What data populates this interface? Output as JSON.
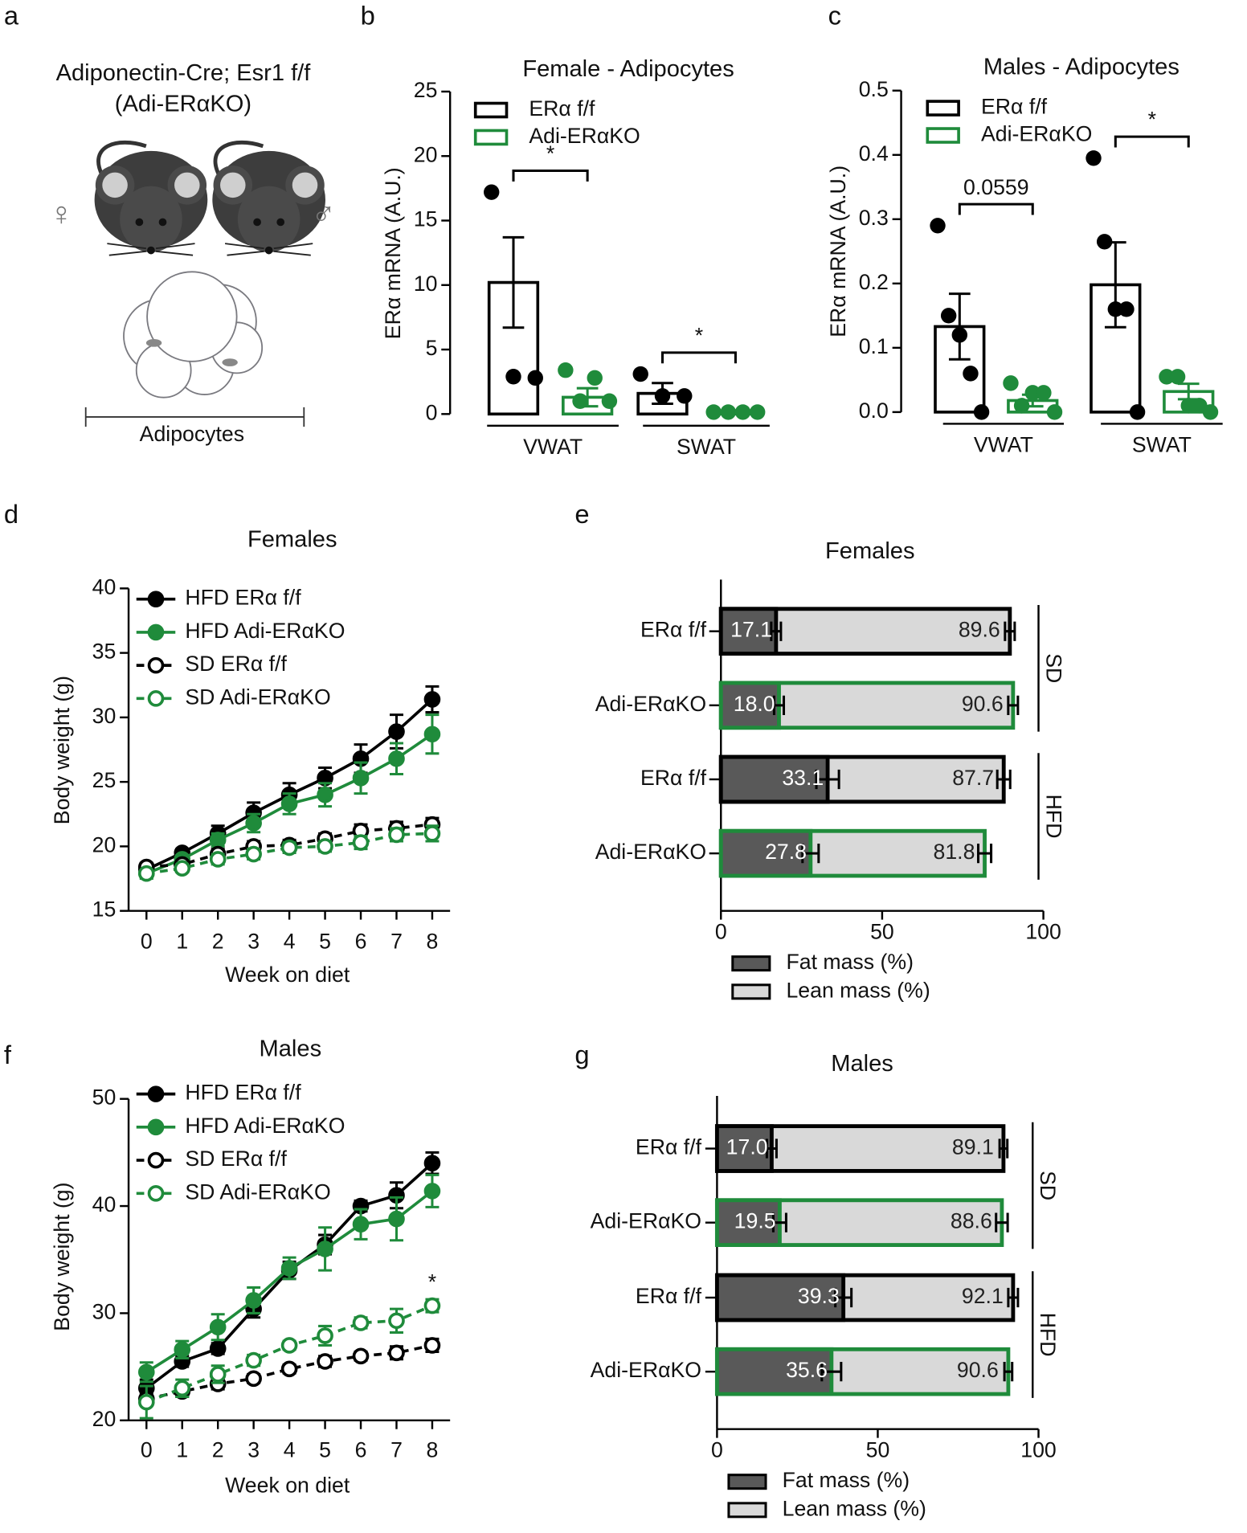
{
  "panel_a": {
    "label": "a",
    "title": [
      "Adiponectin-Cre; Esr1 f/f",
      "(Adi-ERαKO)"
    ],
    "female_symbol": "♀",
    "male_symbol": "♂",
    "caption": "Adipocytes"
  },
  "chart_data": [
    {
      "panel": "b",
      "type": "bar",
      "title": "Female - Adipocytes",
      "y_label": "ERα mRNA (A.U.)",
      "categories": [
        "VWAT",
        "SWAT"
      ],
      "ylim": [
        0,
        25
      ],
      "yticks": [
        0,
        5,
        10,
        15,
        20,
        25
      ],
      "series": [
        {
          "name": "ERα f/f",
          "color": "#000000",
          "values": [
            10.2,
            1.6
          ],
          "errors": [
            3.5,
            0.8
          ],
          "points": [
            [
              17.2,
              2.9,
              2.8
            ],
            [
              3.1,
              1.4,
              1.4
            ]
          ]
        },
        {
          "name": "Adi-ERαKO",
          "color": "#1f8b3b",
          "values": [
            1.3,
            0.15
          ],
          "errors": [
            0.7,
            0.05
          ],
          "points": [
            [
              3.4,
              1.0,
              2.8,
              1.0
            ],
            [
              0.15,
              0.15,
              0.15,
              0.15
            ]
          ]
        }
      ],
      "significance": [
        "*",
        "*"
      ]
    },
    {
      "panel": "c",
      "type": "bar",
      "title": "Males - Adipocytes",
      "y_label": "ERα mRNA (A.U.)",
      "categories": [
        "VWAT",
        "SWAT"
      ],
      "ylim": [
        0,
        0.5
      ],
      "yticks": [
        {
          "value": 0,
          "label": "0.0"
        },
        0.1,
        0.2,
        0.3,
        0.4,
        0.5
      ],
      "series": [
        {
          "name": "ERα f/f",
          "color": "#000000",
          "values": [
            0.133,
            0.198
          ],
          "errors": [
            0.051,
            0.066
          ],
          "points": [
            [
              0.29,
              0.15,
              0.12,
              0.06,
              0.0
            ],
            [
              0.395,
              0.265,
              0.16,
              0.16,
              0.0
            ]
          ]
        },
        {
          "name": "Adi-ERαKO",
          "color": "#1f8b3b",
          "values": [
            0.018,
            0.032
          ],
          "errors": [
            0.009,
            0.012
          ],
          "points": [
            [
              0.045,
              0.01,
              0.03,
              0.03,
              0.0
            ],
            [
              0.055,
              0.055,
              0.01,
              0.01,
              0.0
            ]
          ]
        }
      ],
      "significance": [
        "0.0559",
        "*"
      ]
    },
    {
      "panel": "d",
      "type": "line",
      "title": "Females",
      "x_label": "Week on diet",
      "y_label": "Body weight (g)",
      "x": [
        0,
        1,
        2,
        3,
        4,
        5,
        6,
        7,
        8
      ],
      "xlim": [
        -0.5,
        8.5
      ],
      "xticks": [
        0,
        1,
        2,
        3,
        4,
        5,
        6,
        7,
        8
      ],
      "ylim": [
        15,
        40
      ],
      "yticks": [
        15,
        20,
        25,
        30,
        35,
        40
      ],
      "series": [
        {
          "name": "HFD ERα f/f",
          "color": "#000000",
          "dashed": false,
          "marker": "filled",
          "values": [
            18.2,
            19.5,
            21.0,
            22.6,
            24.0,
            25.3,
            26.8,
            28.9,
            31.4
          ],
          "errors": [
            0.5,
            0.3,
            0.6,
            0.8,
            0.9,
            0.8,
            1.1,
            1.3,
            1.0
          ]
        },
        {
          "name": "HFD Adi-ERαKO",
          "color": "#1f8b3b",
          "dashed": false,
          "marker": "filled",
          "values": [
            17.9,
            19.0,
            20.5,
            21.8,
            23.3,
            24.0,
            25.3,
            26.8,
            28.7
          ],
          "errors": [
            0.4,
            0.3,
            0.5,
            0.7,
            0.8,
            0.9,
            1.2,
            1.2,
            1.5
          ]
        },
        {
          "name": "SD ERα f/f",
          "color": "#000000",
          "dashed": true,
          "marker": "open",
          "values": [
            18.4,
            18.6,
            19.4,
            20.0,
            20.1,
            20.6,
            21.2,
            21.4,
            21.7
          ],
          "errors": [
            0.3,
            0.3,
            0.4,
            0.4,
            0.4,
            0.4,
            0.5,
            0.5,
            0.5
          ]
        },
        {
          "name": "SD Adi-ERαKO",
          "color": "#1f8b3b",
          "dashed": true,
          "marker": "open",
          "values": [
            17.9,
            18.3,
            19.0,
            19.4,
            19.9,
            20.0,
            20.3,
            20.9,
            21.0
          ],
          "errors": [
            0.3,
            0.3,
            0.4,
            0.4,
            0.4,
            0.4,
            0.5,
            0.5,
            0.6
          ]
        }
      ]
    },
    {
      "panel": "e",
      "type": "barh",
      "title": "Females",
      "categories": [
        "ERα f/f",
        "Adi-ERαKO",
        "ERα f/f",
        "Adi-ERαKO"
      ],
      "group_labels": [
        "SD",
        "HFD"
      ],
      "outline_colors": [
        "#000000",
        "#1f8b3b",
        "#000000",
        "#1f8b3b"
      ],
      "xlim": [
        0,
        100
      ],
      "xticks": [
        0,
        50,
        100
      ],
      "series": [
        {
          "name": "Fat mass (%)",
          "color": "#595959",
          "values": [
            17.1,
            18.0,
            33.1,
            27.8
          ],
          "value_labels": [
            "17.1",
            "18.0",
            "33.1",
            "27.8"
          ],
          "errors": [
            1.5,
            1.5,
            3.5,
            2.5
          ]
        },
        {
          "name": "Lean mass (%)",
          "color": "#d9d9d9",
          "values": [
            89.6,
            90.6,
            87.7,
            81.8
          ],
          "value_labels": [
            "89.6",
            "90.6",
            "87.7",
            "81.8"
          ],
          "errors": [
            1.5,
            1.5,
            2.0,
            2.0
          ]
        }
      ]
    },
    {
      "panel": "f",
      "type": "line",
      "title": "Males",
      "x_label": "Week on diet",
      "y_label": "Body weight (g)",
      "x": [
        0,
        1,
        2,
        3,
        4,
        5,
        6,
        7,
        8
      ],
      "xlim": [
        -0.5,
        8.5
      ],
      "xticks": [
        0,
        1,
        2,
        3,
        4,
        5,
        6,
        7,
        8
      ],
      "ylim": [
        20,
        50
      ],
      "yticks": [
        20,
        30,
        40,
        50
      ],
      "series": [
        {
          "name": "HFD ERα f/f",
          "color": "#000000",
          "dashed": false,
          "marker": "filled",
          "values": [
            23.0,
            25.5,
            26.7,
            30.4,
            34.0,
            36.4,
            40.0,
            41.0,
            44.0
          ],
          "errors": [
            0.8,
            0.5,
            0.5,
            0.8,
            0.8,
            0.9,
            0.5,
            1.2,
            1.0
          ]
        },
        {
          "name": "HFD Adi-ERαKO",
          "color": "#1f8b3b",
          "dashed": false,
          "marker": "filled",
          "values": [
            24.5,
            26.6,
            28.7,
            31.2,
            34.2,
            36.0,
            38.3,
            38.8,
            41.4
          ],
          "errors": [
            0.9,
            0.8,
            1.2,
            1.2,
            1.0,
            2.0,
            1.4,
            2.0,
            1.5
          ]
        },
        {
          "name": "SD ERα f/f",
          "color": "#000000",
          "dashed": true,
          "marker": "open",
          "values": [
            22.0,
            22.7,
            23.4,
            23.9,
            24.8,
            25.5,
            26.0,
            26.3,
            27.0
          ],
          "errors": [
            0.5,
            0.5,
            0.5,
            0.4,
            0.4,
            0.5,
            0.4,
            0.6,
            0.6
          ]
        },
        {
          "name": "SD Adi-ERαKO",
          "color": "#1f8b3b",
          "dashed": true,
          "marker": "open",
          "values": [
            21.7,
            23.0,
            24.3,
            25.6,
            27.0,
            27.9,
            29.1,
            29.3,
            30.7
          ],
          "errors": [
            1.5,
            0.8,
            0.8,
            0.5,
            0.4,
            0.9,
            0.5,
            1.1,
            0.6
          ]
        }
      ],
      "annotations": [
        {
          "text": "*",
          "x": 8
        }
      ]
    },
    {
      "panel": "g",
      "type": "barh",
      "title": "Males",
      "categories": [
        "ERα f/f",
        "Adi-ERαKO",
        "ERα f/f",
        "Adi-ERαKO"
      ],
      "group_labels": [
        "SD",
        "HFD"
      ],
      "outline_colors": [
        "#000000",
        "#1f8b3b",
        "#000000",
        "#1f8b3b"
      ],
      "xlim": [
        0,
        100
      ],
      "xticks": [
        0,
        50,
        100
      ],
      "series": [
        {
          "name": "Fat mass (%)",
          "color": "#595959",
          "values": [
            17.0,
            19.5,
            39.3,
            35.6
          ],
          "value_labels": [
            "17.0",
            "19.5",
            "39.3",
            "35.6"
          ],
          "errors": [
            1.5,
            2.0,
            2.5,
            3.0
          ]
        },
        {
          "name": "Lean mass (%)",
          "color": "#d9d9d9",
          "values": [
            89.1,
            88.6,
            92.1,
            90.6
          ],
          "value_labels": [
            "89.1",
            "88.6",
            "92.1",
            "90.6"
          ],
          "errors": [
            1.2,
            1.8,
            1.5,
            1.2
          ]
        }
      ]
    }
  ]
}
